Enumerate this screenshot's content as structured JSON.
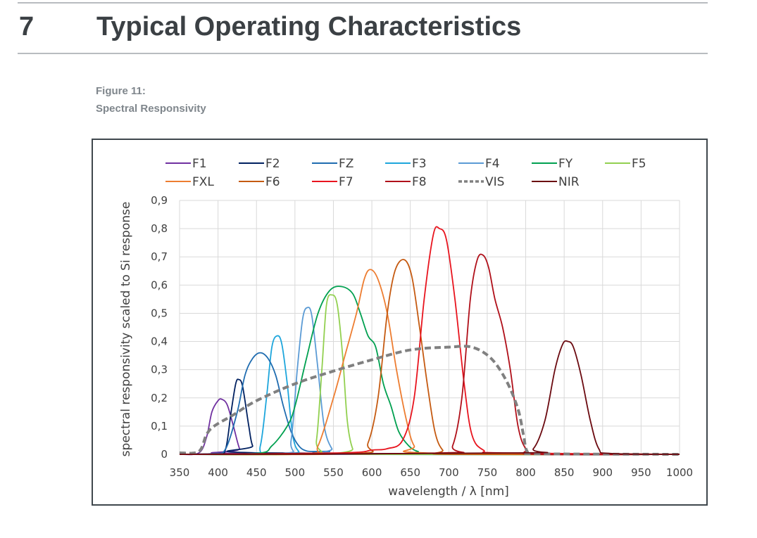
{
  "section": {
    "number": "7",
    "title": "Typical Operating Characteristics"
  },
  "figure": {
    "label": "Figure 11:",
    "caption": "Spectral Responsivity"
  },
  "chart_data": {
    "type": "line",
    "title": "",
    "xlabel": "wavelength / λ [nm]",
    "ylabel": "spectral responsivity scaled to Si response",
    "xlim": [
      350,
      1000
    ],
    "ylim": [
      0,
      0.9
    ],
    "xticks": [
      "350",
      "400",
      "450",
      "500",
      "550",
      "600",
      "650",
      "700",
      "750",
      "800",
      "850",
      "900",
      "950",
      "1000"
    ],
    "yticks": [
      "0",
      "0,1",
      "0,2",
      "0,3",
      "0,4",
      "0,5",
      "0,6",
      "0,7",
      "0,8",
      "0,9"
    ],
    "grid": true,
    "legend_position": "top",
    "series": [
      {
        "name": "F1",
        "color": "#7030a0",
        "dashed": false,
        "points": [
          [
            350,
            0
          ],
          [
            375,
            0.005
          ],
          [
            385,
            0.06
          ],
          [
            392,
            0.15
          ],
          [
            400,
            0.19
          ],
          [
            405,
            0.195
          ],
          [
            412,
            0.175
          ],
          [
            420,
            0.1
          ],
          [
            428,
            0.02
          ],
          [
            435,
            0.003
          ],
          [
            1000,
            0
          ]
        ]
      },
      {
        "name": "F2",
        "color": "#002060",
        "dashed": false,
        "points": [
          [
            350,
            0
          ],
          [
            400,
            0.003
          ],
          [
            410,
            0.02
          ],
          [
            417,
            0.15
          ],
          [
            423,
            0.25
          ],
          [
            427,
            0.265
          ],
          [
            432,
            0.24
          ],
          [
            440,
            0.1
          ],
          [
            445,
            0.03
          ],
          [
            455,
            0.005
          ],
          [
            1000,
            0
          ]
        ]
      },
      {
        "name": "F3",
        "color": "#1ea6dc",
        "dashed": false,
        "points": [
          [
            350,
            0
          ],
          [
            445,
            0.003
          ],
          [
            455,
            0.03
          ],
          [
            463,
            0.2
          ],
          [
            470,
            0.38
          ],
          [
            477,
            0.42
          ],
          [
            483,
            0.39
          ],
          [
            490,
            0.25
          ],
          [
            497,
            0.07
          ],
          [
            505,
            0.01
          ],
          [
            520,
            0
          ],
          [
            1000,
            0
          ]
        ]
      },
      {
        "name": "FZ",
        "color": "#1f6cb0",
        "dashed": false,
        "points": [
          [
            350,
            0
          ],
          [
            395,
            0.003
          ],
          [
            410,
            0.02
          ],
          [
            425,
            0.15
          ],
          [
            435,
            0.28
          ],
          [
            445,
            0.34
          ],
          [
            455,
            0.36
          ],
          [
            465,
            0.34
          ],
          [
            475,
            0.28
          ],
          [
            485,
            0.17
          ],
          [
            495,
            0.08
          ],
          [
            505,
            0.03
          ],
          [
            515,
            0.012
          ],
          [
            530,
            0.01
          ],
          [
            545,
            0.01
          ],
          [
            560,
            0.003
          ],
          [
            1000,
            0
          ]
        ]
      },
      {
        "name": "F4",
        "color": "#5b9bd5",
        "dashed": false,
        "points": [
          [
            350,
            0
          ],
          [
            485,
            0.003
          ],
          [
            495,
            0.05
          ],
          [
            503,
            0.3
          ],
          [
            510,
            0.48
          ],
          [
            516,
            0.52
          ],
          [
            522,
            0.49
          ],
          [
            530,
            0.3
          ],
          [
            538,
            0.1
          ],
          [
            548,
            0.02
          ],
          [
            560,
            0
          ],
          [
            1000,
            0
          ]
        ]
      },
      {
        "name": "FY",
        "color": "#00a050",
        "dashed": false,
        "points": [
          [
            350,
            0
          ],
          [
            450,
            0.003
          ],
          [
            470,
            0.03
          ],
          [
            490,
            0.1
          ],
          [
            500,
            0.17
          ],
          [
            515,
            0.34
          ],
          [
            530,
            0.5
          ],
          [
            545,
            0.58
          ],
          [
            560,
            0.595
          ],
          [
            575,
            0.57
          ],
          [
            585,
            0.5
          ],
          [
            595,
            0.42
          ],
          [
            605,
            0.38
          ],
          [
            615,
            0.25
          ],
          [
            625,
            0.17
          ],
          [
            635,
            0.08
          ],
          [
            648,
            0.03
          ],
          [
            660,
            0.01
          ],
          [
            680,
            0.002
          ],
          [
            1000,
            0
          ]
        ]
      },
      {
        "name": "F5",
        "color": "#92d050",
        "dashed": false,
        "points": [
          [
            350,
            0
          ],
          [
            520,
            0.003
          ],
          [
            528,
            0.05
          ],
          [
            535,
            0.3
          ],
          [
            541,
            0.53
          ],
          [
            548,
            0.565
          ],
          [
            555,
            0.53
          ],
          [
            562,
            0.35
          ],
          [
            568,
            0.12
          ],
          [
            575,
            0.02
          ],
          [
            585,
            0
          ],
          [
            1000,
            0
          ]
        ]
      },
      {
        "name": "FXL",
        "color": "#ed7d31",
        "dashed": false,
        "points": [
          [
            350,
            0
          ],
          [
            515,
            0.003
          ],
          [
            530,
            0.03
          ],
          [
            550,
            0.2
          ],
          [
            565,
            0.35
          ],
          [
            580,
            0.5
          ],
          [
            590,
            0.62
          ],
          [
            598,
            0.655
          ],
          [
            608,
            0.62
          ],
          [
            620,
            0.5
          ],
          [
            632,
            0.3
          ],
          [
            645,
            0.12
          ],
          [
            655,
            0.03
          ],
          [
            670,
            0.005
          ],
          [
            1000,
            0
          ]
        ]
      },
      {
        "name": "F6",
        "color": "#c55a11",
        "dashed": false,
        "points": [
          [
            350,
            0
          ],
          [
            580,
            0.003
          ],
          [
            595,
            0.04
          ],
          [
            608,
            0.2
          ],
          [
            620,
            0.5
          ],
          [
            630,
            0.65
          ],
          [
            642,
            0.69
          ],
          [
            652,
            0.63
          ],
          [
            662,
            0.45
          ],
          [
            672,
            0.25
          ],
          [
            682,
            0.08
          ],
          [
            692,
            0.015
          ],
          [
            705,
            0
          ],
          [
            1000,
            0
          ]
        ]
      },
      {
        "name": "F7",
        "color": "#e8141e",
        "dashed": false,
        "points": [
          [
            350,
            0
          ],
          [
            560,
            0.005
          ],
          [
            600,
            0.015
          ],
          [
            620,
            0.02
          ],
          [
            640,
            0.05
          ],
          [
            655,
            0.2
          ],
          [
            668,
            0.55
          ],
          [
            680,
            0.78
          ],
          [
            688,
            0.8
          ],
          [
            697,
            0.76
          ],
          [
            708,
            0.55
          ],
          [
            720,
            0.25
          ],
          [
            730,
            0.07
          ],
          [
            745,
            0.015
          ],
          [
            770,
            0.005
          ],
          [
            1000,
            0
          ]
        ]
      },
      {
        "name": "F8",
        "color": "#b0101a",
        "dashed": false,
        "points": [
          [
            350,
            0
          ],
          [
            690,
            0.005
          ],
          [
            705,
            0.03
          ],
          [
            717,
            0.2
          ],
          [
            728,
            0.55
          ],
          [
            737,
            0.69
          ],
          [
            745,
            0.705
          ],
          [
            752,
            0.66
          ],
          [
            760,
            0.55
          ],
          [
            770,
            0.45
          ],
          [
            780,
            0.3
          ],
          [
            790,
            0.1
          ],
          [
            800,
            0.02
          ],
          [
            815,
            0
          ],
          [
            1000,
            0
          ]
        ]
      },
      {
        "name": "VIS",
        "color": "#808080",
        "dashed": true,
        "points": [
          [
            350,
            0.005
          ],
          [
            375,
            0.01
          ],
          [
            385,
            0.07
          ],
          [
            395,
            0.1
          ],
          [
            420,
            0.14
          ],
          [
            450,
            0.19
          ],
          [
            500,
            0.25
          ],
          [
            550,
            0.295
          ],
          [
            600,
            0.335
          ],
          [
            650,
            0.37
          ],
          [
            700,
            0.38
          ],
          [
            730,
            0.38
          ],
          [
            755,
            0.34
          ],
          [
            775,
            0.26
          ],
          [
            790,
            0.16
          ],
          [
            797,
            0.07
          ],
          [
            802,
            0.01
          ],
          [
            815,
            0.002
          ],
          [
            1000,
            0
          ]
        ]
      },
      {
        "name": "NIR",
        "color": "#6b0a10",
        "dashed": false,
        "points": [
          [
            350,
            0
          ],
          [
            790,
            0.005
          ],
          [
            810,
            0.02
          ],
          [
            825,
            0.12
          ],
          [
            838,
            0.3
          ],
          [
            848,
            0.39
          ],
          [
            855,
            0.4
          ],
          [
            862,
            0.38
          ],
          [
            872,
            0.28
          ],
          [
            884,
            0.12
          ],
          [
            895,
            0.02
          ],
          [
            910,
            0.003
          ],
          [
            1000,
            0
          ]
        ]
      }
    ]
  }
}
